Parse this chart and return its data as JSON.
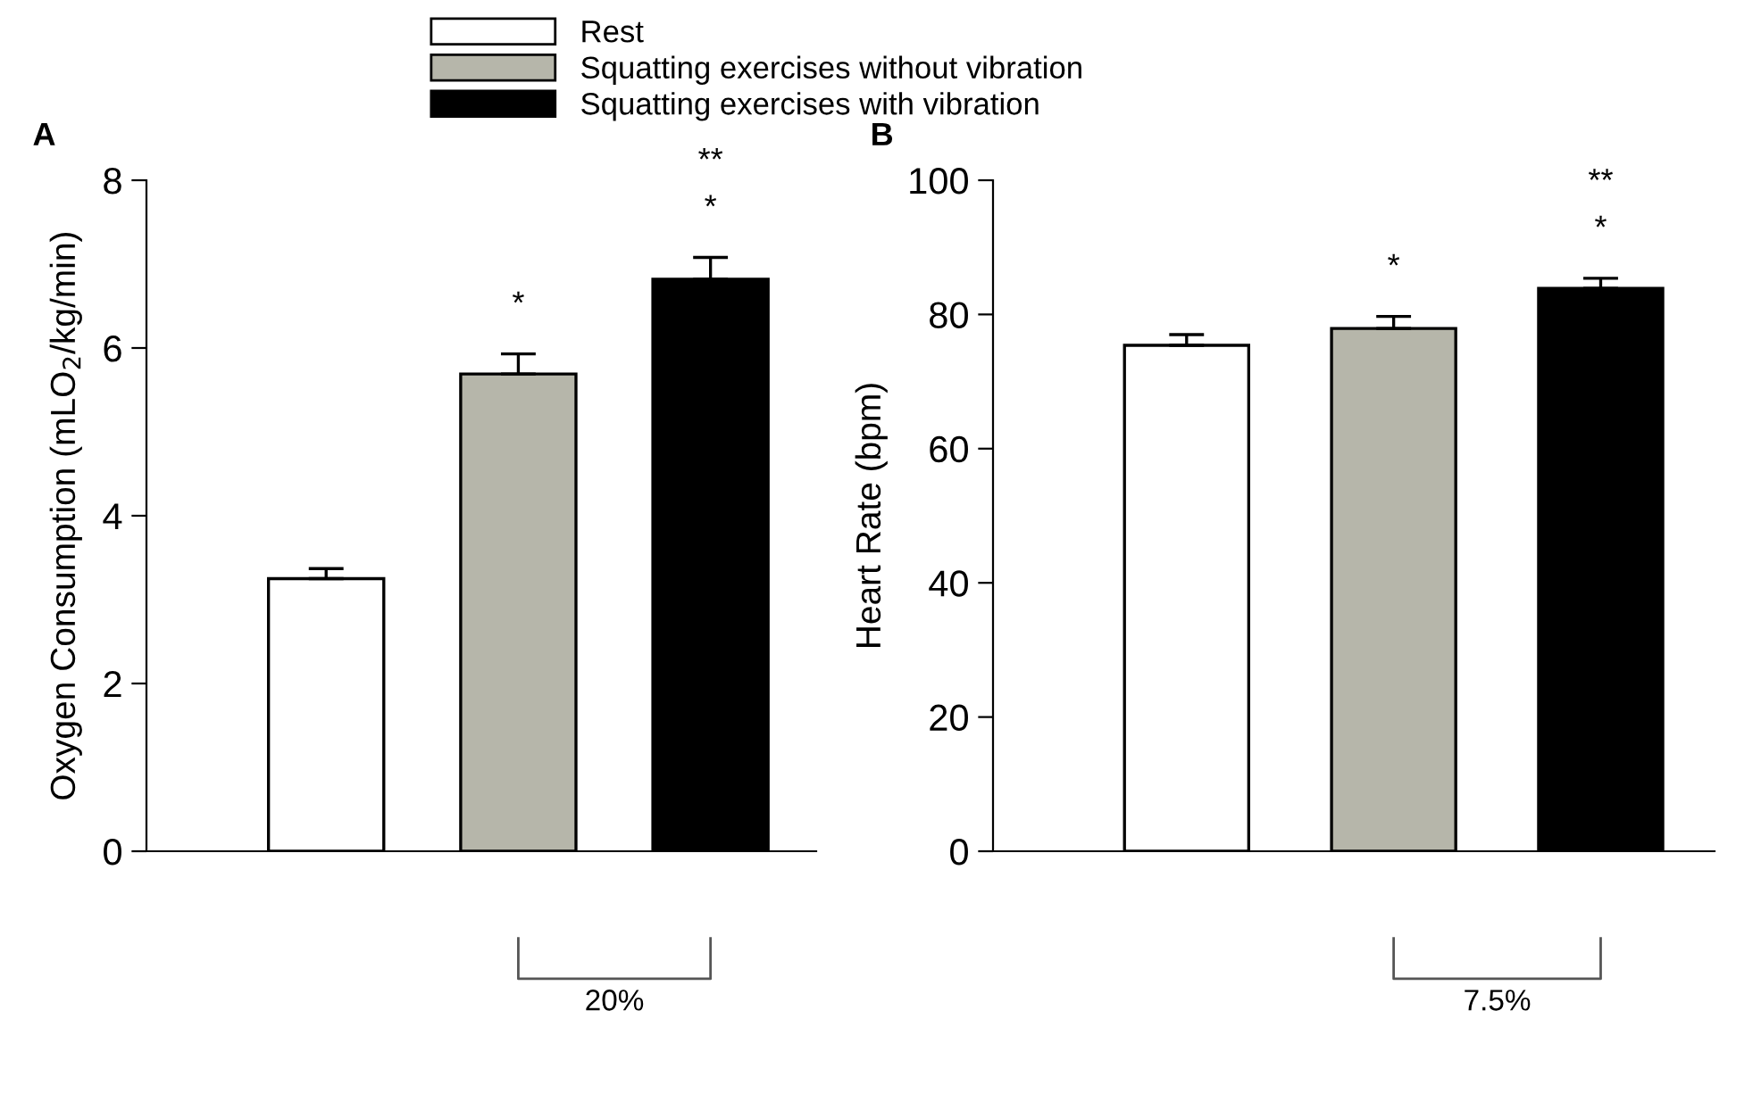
{
  "chart_data": [
    {
      "type": "bar",
      "title": "A",
      "ylabel": "Oxygen Consumption (mLO$_{2}$/kg/min)",
      "categories": [
        null
      ],
      "legend": "top",
      "series": [
        {
          "name": "Rest",
          "color": "#ffffff",
          "values": [
            3.25
          ],
          "errors": [
            0.12
          ]
        },
        {
          "name": "Squatting exercises without vibration",
          "color": "#b6b6aa",
          "values": [
            5.69
          ],
          "errors": [
            0.24
          ]
        },
        {
          "name": "Squatting exercises with vibration",
          "color": "#000000",
          "values": [
            6.82
          ],
          "errors": [
            0.26
          ]
        }
      ],
      "ylim": [
        0,
        8
      ],
      "yticks": [
        0,
        2,
        4,
        6,
        8
      ],
      "grid": false,
      "annotations": [
        "*",
        "*",
        "**",
        "20%"
      ]
    },
    {
      "type": "bar",
      "title": "B",
      "ylabel": "Heart Rate (bpm)",
      "categories": [
        null,
        null,
        null
      ],
      "values": [
        75.4,
        77.9,
        83.9
      ],
      "errors": [
        1.6,
        1.8,
        1.5
      ],
      "colors": [
        "#ffffff",
        "#b6b6aa",
        "#000000"
      ],
      "ylim": [
        0,
        100
      ],
      "yticks": [
        0,
        20,
        40,
        60,
        80,
        100
      ],
      "grid": false,
      "annotations": [
        "*",
        "*",
        "**",
        "7.5%"
      ]
    }
  ]
}
